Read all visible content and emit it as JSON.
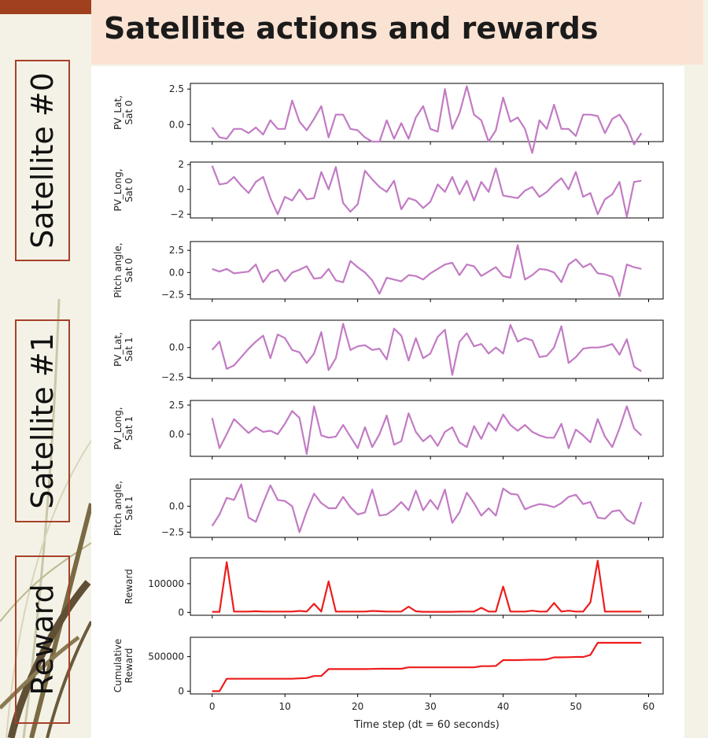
{
  "slide": {
    "title": "Satellite actions and rewards",
    "labels": [
      "Satellite #0",
      "Satellite #1",
      "Reward"
    ],
    "colors": {
      "accent": "#a0401e",
      "title_bg": "#fbe3d3",
      "background": "#f4f2e6"
    }
  },
  "chart_data": [
    {
      "type": "line",
      "ylabel": "PV_Lat,\nSat 0",
      "ylim": [
        -1.2,
        2.9
      ],
      "yticks": [
        -0.0,
        2.5
      ],
      "yticklabels": [
        "0.0",
        "2.5"
      ],
      "color": "#c27bc4",
      "values": [
        -0.2,
        -0.9,
        -1.0,
        -0.3,
        -0.3,
        -0.6,
        -0.2,
        -0.7,
        0.3,
        -0.3,
        -0.3,
        1.7,
        0.2,
        -0.4,
        0.4,
        1.3,
        -0.9,
        0.7,
        0.7,
        -0.3,
        -0.4,
        -0.9,
        -1.2,
        -1.2,
        0.3,
        -1.0,
        0.1,
        -1.0,
        0.5,
        1.3,
        -0.3,
        -0.5,
        2.5,
        -0.3,
        0.8,
        2.7,
        0.7,
        0.3,
        -1.2,
        -0.4,
        1.9,
        0.2,
        0.5,
        -0.3,
        -2.0,
        0.3,
        -0.3,
        1.4,
        -0.3,
        -0.3,
        -0.8,
        0.7,
        0.7,
        0.6,
        -0.6,
        0.4,
        0.7,
        -0.1,
        -1.4,
        -0.6
      ]
    },
    {
      "type": "line",
      "ylabel": "PV_Long,\nSat 0",
      "ylim": [
        -2.3,
        2.2
      ],
      "yticks": [
        -2,
        0,
        2
      ],
      "yticklabels": [
        "−2",
        "0",
        "2"
      ],
      "color": "#c27bc4",
      "values": [
        1.9,
        0.4,
        0.5,
        1.0,
        0.3,
        -0.3,
        0.6,
        1.0,
        -0.7,
        -2.0,
        -0.6,
        -0.9,
        0.0,
        -0.8,
        -0.7,
        1.4,
        0.0,
        1.8,
        -1.1,
        -1.8,
        -1.2,
        1.5,
        0.8,
        0.2,
        -0.2,
        0.7,
        -1.6,
        -0.7,
        -0.9,
        -1.5,
        -1.0,
        0.4,
        -0.2,
        1.0,
        -0.4,
        0.7,
        -0.9,
        0.6,
        -0.2,
        1.7,
        -0.5,
        -0.6,
        -0.7,
        -0.1,
        0.2,
        -0.6,
        -0.2,
        0.4,
        0.9,
        0.0,
        1.4,
        -0.6,
        -0.3,
        -2.0,
        -0.8,
        -0.4,
        0.6,
        -2.2,
        0.6,
        0.7
      ]
    },
    {
      "type": "line",
      "ylabel": "Pitch angle,\nSat 0",
      "ylim": [
        -3.0,
        3.5
      ],
      "yticks": [
        -2.5,
        0,
        2.5
      ],
      "yticklabels": [
        "−2.5",
        "0.0",
        "2.5"
      ],
      "color": "#c27bc4",
      "values": [
        0.4,
        0.1,
        0.4,
        -0.1,
        0.0,
        0.1,
        0.9,
        -1.1,
        0.0,
        0.3,
        -1.0,
        0.0,
        0.3,
        0.7,
        -0.7,
        -0.6,
        0.4,
        -0.9,
        -1.1,
        1.3,
        0.6,
        0.0,
        -0.9,
        -2.4,
        -0.6,
        -0.8,
        -1.0,
        -0.3,
        -0.4,
        -0.8,
        -0.1,
        0.4,
        0.9,
        1.1,
        -0.3,
        0.9,
        0.7,
        -0.4,
        0.1,
        0.6,
        -0.4,
        -0.6,
        3.1,
        -0.8,
        -0.3,
        0.4,
        0.3,
        0.0,
        -1.1,
        0.9,
        1.5,
        0.6,
        1.0,
        -0.1,
        -0.2,
        -0.5,
        -2.7,
        0.9,
        0.6,
        0.4
      ]
    },
    {
      "type": "line",
      "ylabel": "PV_Lat,\nSat 1",
      "ylim": [
        -2.6,
        2.3
      ],
      "yticks": [
        -2.5,
        0
      ],
      "yticklabels": [
        "−2.5",
        "0.0"
      ],
      "color": "#c27bc4",
      "values": [
        -0.2,
        0.5,
        -1.8,
        -1.5,
        -0.8,
        -0.1,
        0.5,
        1.0,
        -0.9,
        1.1,
        0.8,
        -0.2,
        -0.4,
        -1.3,
        -0.5,
        1.3,
        -1.9,
        -0.9,
        2.0,
        -0.2,
        0.1,
        0.2,
        -0.2,
        -0.1,
        -1.0,
        1.6,
        1.0,
        -1.1,
        0.8,
        -0.9,
        -0.5,
        0.9,
        1.5,
        -2.3,
        0.5,
        1.2,
        0.1,
        0.3,
        -0.5,
        0.0,
        -0.5,
        1.9,
        0.5,
        0.8,
        0.6,
        -0.8,
        -0.7,
        0.0,
        1.8,
        -1.3,
        -0.8,
        -0.1,
        0.0,
        0.0,
        0.1,
        0.3,
        -0.6,
        0.7,
        -1.6,
        -2.0
      ]
    },
    {
      "type": "line",
      "ylabel": "PV_Long,\nSat 1",
      "ylim": [
        -1.9,
        2.9
      ],
      "yticks": [
        0,
        2.5
      ],
      "yticklabels": [
        "0.0",
        "2.5"
      ],
      "color": "#c27bc4",
      "values": [
        1.4,
        -1.2,
        0.0,
        1.3,
        0.7,
        0.1,
        0.6,
        0.2,
        0.3,
        0.0,
        0.9,
        2.0,
        1.4,
        -1.7,
        2.4,
        -0.1,
        -0.3,
        -0.2,
        0.8,
        -0.2,
        -1.2,
        0.6,
        -1.1,
        0.0,
        1.6,
        -0.9,
        -0.6,
        1.8,
        0.2,
        -0.6,
        -0.1,
        -1.0,
        0.2,
        0.6,
        -0.7,
        -1.1,
        0.7,
        -0.4,
        1.0,
        0.3,
        1.7,
        0.8,
        0.3,
        0.8,
        0.2,
        -0.1,
        -0.3,
        -0.3,
        0.9,
        -1.2,
        0.4,
        -0.1,
        -0.7,
        1.3,
        -0.2,
        -1.1,
        0.5,
        2.4,
        0.5,
        -0.1
      ]
    },
    {
      "type": "line",
      "ylabel": "Pitch angle,\nSat 1",
      "ylim": [
        -3.0,
        2.6
      ],
      "yticks": [
        -2.5,
        0
      ],
      "yticklabels": [
        "−2.5",
        "0.0"
      ],
      "color": "#c27bc4",
      "values": [
        -1.9,
        -0.8,
        0.8,
        0.6,
        2.1,
        -1.1,
        -1.5,
        0.3,
        2.0,
        0.6,
        0.5,
        0.0,
        -2.5,
        -0.5,
        1.2,
        0.3,
        -0.2,
        -0.2,
        0.9,
        -0.1,
        -0.8,
        -0.6,
        1.6,
        -0.9,
        -0.8,
        -0.3,
        0.4,
        -0.4,
        1.5,
        -0.4,
        0.6,
        -0.3,
        1.6,
        -1.6,
        -0.6,
        1.3,
        0.3,
        -0.9,
        -0.2,
        -0.9,
        1.7,
        1.2,
        1.1,
        -0.3,
        0.0,
        0.2,
        0.1,
        -0.1,
        0.3,
        0.9,
        1.1,
        0.2,
        0.4,
        -1.1,
        -1.2,
        -0.5,
        -0.4,
        -1.3,
        -1.7,
        0.4
      ]
    },
    {
      "type": "line",
      "ylabel": "Reward",
      "ylim": [
        -10000,
        190000
      ],
      "yticks": [
        0,
        100000
      ],
      "yticklabels": [
        "0",
        "100000"
      ],
      "color": "#ee1c1c",
      "values": [
        2000,
        2000,
        175000,
        3000,
        3000,
        3000,
        4000,
        3000,
        3000,
        3000,
        3000,
        3000,
        5000,
        3000,
        30000,
        3000,
        108000,
        3000,
        3000,
        3000,
        3000,
        3000,
        5000,
        4000,
        3000,
        3000,
        3000,
        20000,
        4000,
        2000,
        2000,
        2000,
        2000,
        2000,
        3000,
        3000,
        3000,
        16000,
        3000,
        3000,
        90000,
        3000,
        3000,
        3000,
        6000,
        3000,
        3000,
        33000,
        3000,
        6000,
        3000,
        3000,
        35000,
        180000,
        3000,
        3000,
        3000,
        3000,
        3000,
        3000
      ]
    },
    {
      "type": "line",
      "ylabel": "Cumulative\nReward",
      "ylim": [
        -40000,
        780000
      ],
      "yticks": [
        0,
        500000
      ],
      "yticklabels": [
        "0",
        "500000"
      ],
      "color": "#ee1c1c",
      "values": [
        0,
        0,
        180000,
        180000,
        180000,
        180000,
        180000,
        180000,
        180000,
        180000,
        180000,
        180000,
        185000,
        190000,
        220000,
        220000,
        320000,
        320000,
        320000,
        320000,
        320000,
        320000,
        322000,
        325000,
        325000,
        325000,
        325000,
        345000,
        345000,
        345000,
        345000,
        345000,
        345000,
        345000,
        345000,
        345000,
        345000,
        362000,
        362000,
        365000,
        450000,
        450000,
        450000,
        453000,
        455000,
        455000,
        460000,
        490000,
        490000,
        492000,
        495000,
        495000,
        525000,
        700000,
        700000,
        700000,
        700000,
        700000,
        700000,
        700000
      ]
    }
  ],
  "x_axis": {
    "label": "Time step (dt = 60 seconds)",
    "ticks": [
      0,
      10,
      20,
      30,
      40,
      50,
      60
    ],
    "ticklabels": [
      "0",
      "10",
      "20",
      "30",
      "40",
      "50",
      "60"
    ],
    "xlim": [
      -3,
      62
    ]
  }
}
